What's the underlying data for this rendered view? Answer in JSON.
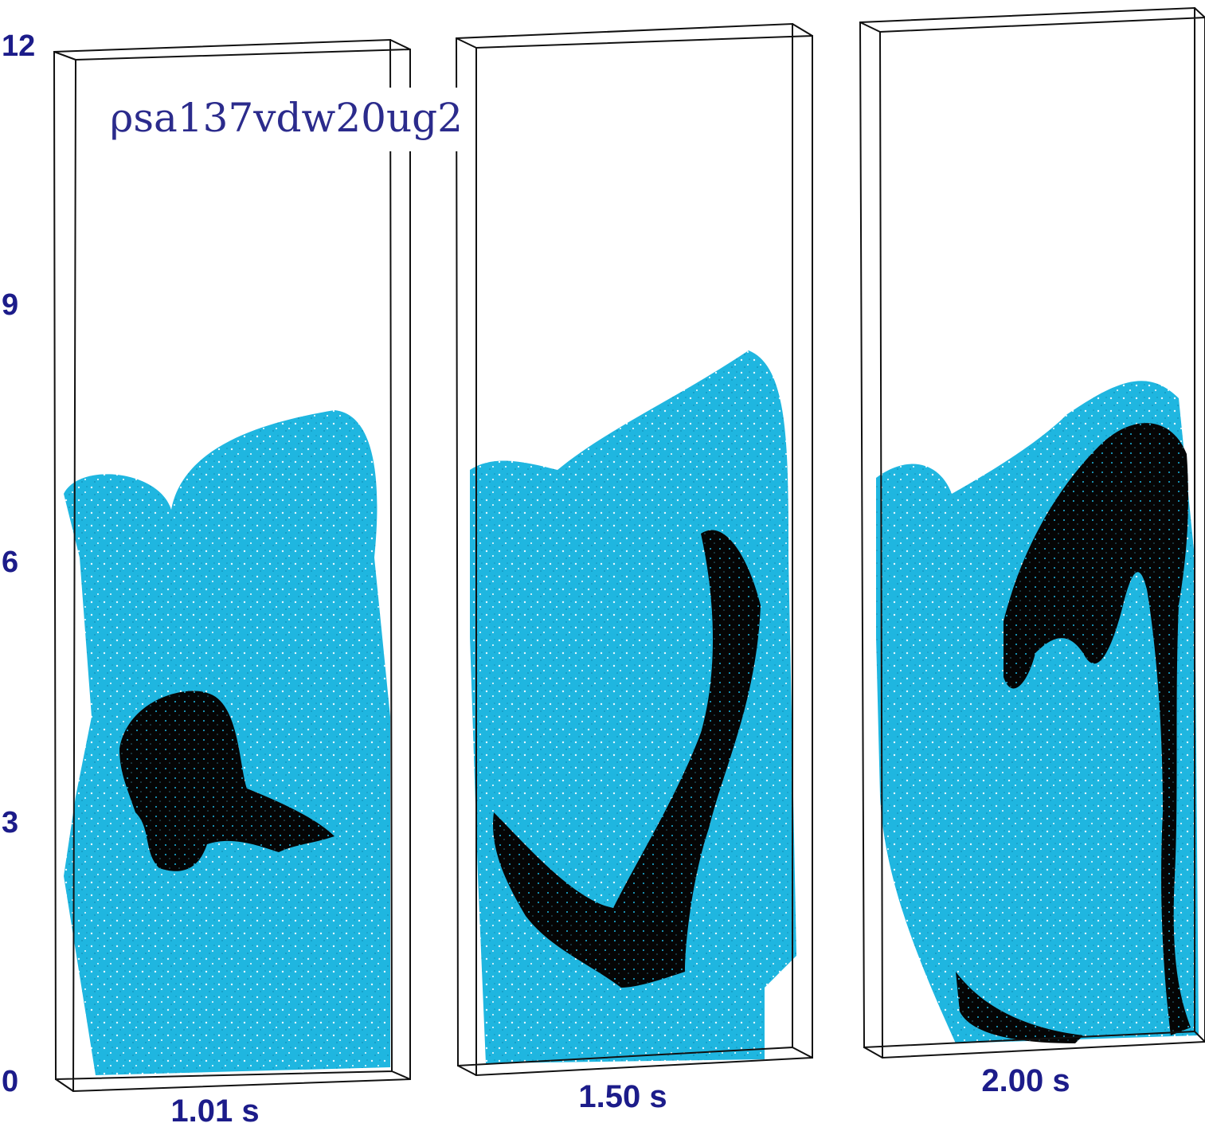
{
  "axis": {
    "ticks": [
      12,
      9,
      6,
      3,
      0
    ]
  },
  "label": "ρsa137vdw20ug2",
  "panels": [
    {
      "time": "1.01 s"
    },
    {
      "time": "1.50 s"
    },
    {
      "time": "2.00 s"
    }
  ]
}
